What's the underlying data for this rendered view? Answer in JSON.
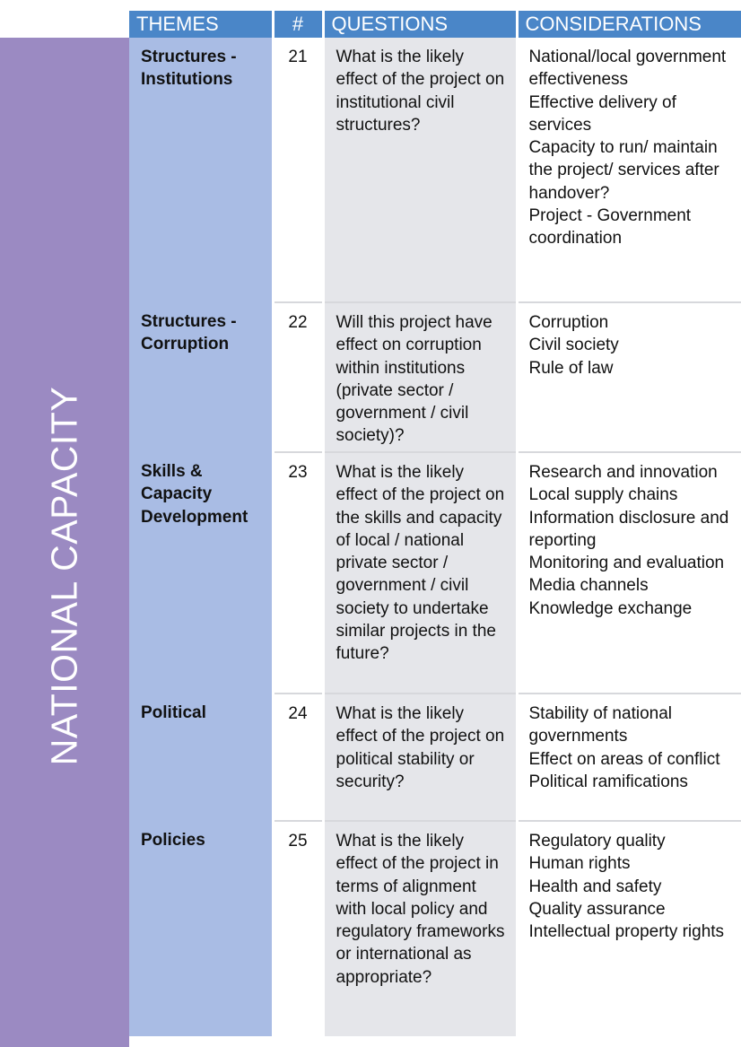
{
  "side_label": "NATIONAL CAPACITY",
  "headers": {
    "themes": "THEMES",
    "num": "#",
    "questions": "QUESTIONS",
    "considerations": "CONSIDERATIONS"
  },
  "rows": [
    {
      "theme": "Structures - Institutions",
      "num": "21",
      "question": "What is the likely effect of the project on institutional civil structures?",
      "considerations": [
        "National/local government effectiveness",
        "Effective delivery of services",
        "Capacity to run/ maintain the project/ services after handover?",
        "Project - Government coordination"
      ]
    },
    {
      "theme": "Structures - Corruption",
      "num": "22",
      "question": "Will this project have effect on corruption within institutions (private sector / government / civil society)?",
      "considerations": [
        "Corruption",
        "Civil society",
        "Rule of law"
      ]
    },
    {
      "theme": "Skills & Capacity Development",
      "num": "23",
      "question": "What is the likely effect of the project on the skills and capacity of local / national private sector / government / civil society to undertake similar projects in the future?",
      "considerations": [
        "Research and innovation",
        "Local supply chains",
        "Information disclosure and reporting",
        "Monitoring and evaluation",
        "Media channels",
        "Knowledge exchange"
      ]
    },
    {
      "theme": "Political",
      "num": "24",
      "question": "What is the likely effect of the project on political stability or security?",
      "considerations": [
        "Stability of national governments",
        "Effect on areas of conflict",
        "Political ramifications"
      ]
    },
    {
      "theme": "Policies",
      "num": "25",
      "question": "What is the likely effect of the project in terms of alignment with local policy and regulatory frameworks or international as appropriate?",
      "considerations": [
        "Regulatory quality",
        "Human rights",
        "Health and safety",
        "Quality assurance",
        "Intellectual property rights"
      ]
    }
  ]
}
